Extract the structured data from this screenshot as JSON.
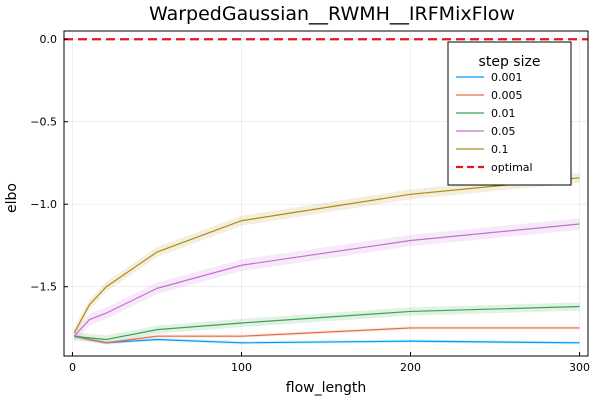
{
  "chart_data": {
    "type": "line",
    "title": "WarpedGaussian__RWMH__IRFMixFlow",
    "xlabel": "flow_length",
    "ylabel": "elbo",
    "xlim": [
      -5,
      305
    ],
    "ylim": [
      -1.92,
      0.05
    ],
    "xticks": [
      0,
      100,
      200,
      300
    ],
    "xtick_labels": [
      "0",
      "100",
      "200",
      "300"
    ],
    "yticks": [
      0.0,
      -0.5,
      -1.0,
      -1.5
    ],
    "ytick_labels": [
      "0.0",
      "−0.5",
      "−1.0",
      "−1.5"
    ],
    "grid": true,
    "legend": {
      "title": "step size",
      "placement": "top-right"
    },
    "x": [
      1,
      10,
      20,
      50,
      100,
      200,
      300
    ],
    "series": [
      {
        "name": "0.001",
        "color": "#009AFA",
        "values": [
          -1.8,
          -1.82,
          -1.84,
          -1.82,
          -1.84,
          -1.83,
          -1.84
        ],
        "band": 0.01
      },
      {
        "name": "0.005",
        "color": "#E36F47",
        "values": [
          -1.8,
          -1.82,
          -1.84,
          -1.8,
          -1.8,
          -1.75,
          -1.75
        ],
        "band": 0.01
      },
      {
        "name": "0.01",
        "color": "#3EA44E",
        "values": [
          -1.8,
          -1.81,
          -1.82,
          -1.76,
          -1.72,
          -1.65,
          -1.62
        ],
        "band": 0.025
      },
      {
        "name": "0.05",
        "color": "#C371D2",
        "values": [
          -1.8,
          -1.7,
          -1.66,
          -1.51,
          -1.37,
          -1.22,
          -1.12
        ],
        "band": 0.035
      },
      {
        "name": "0.1",
        "color": "#AC8D18",
        "values": [
          -1.78,
          -1.61,
          -1.5,
          -1.29,
          -1.1,
          -0.94,
          -0.84
        ],
        "band": 0.03
      }
    ],
    "reference_line": {
      "name": "optimal",
      "y": 0.0,
      "color": "#E5191C",
      "style": "dashed"
    }
  }
}
